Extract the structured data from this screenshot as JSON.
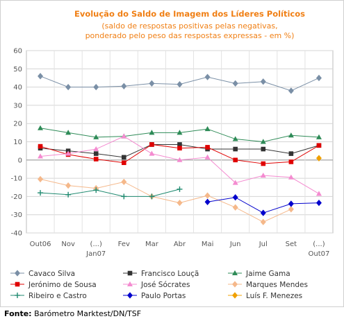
{
  "chart_data": {
    "type": "line",
    "title": "Evolução do Saldo  de Imagem dos Líderes Políticos",
    "subtitle": [
      "(saldo de respostas positivas pelas negativas,",
      "ponderado pelo peso das respostas expressas - em %)"
    ],
    "categories": [
      [
        "Out06"
      ],
      [
        "Nov"
      ],
      [
        "(...)",
        "Jan07"
      ],
      [
        "Fev"
      ],
      [
        "Mar"
      ],
      [
        "Abr"
      ],
      [
        "Mai"
      ],
      [
        "Jun"
      ],
      [
        "Jul"
      ],
      [
        "Set"
      ],
      [
        "(...)",
        "Out07"
      ]
    ],
    "ylim": [
      -40,
      60
    ],
    "yticks": [
      -40,
      -30,
      -20,
      -10,
      0,
      10,
      20,
      30,
      40,
      50,
      60
    ],
    "grid": true,
    "legend_position": "bottom",
    "series": [
      {
        "name": "Cavaco Silva",
        "color": "#7a8fa6",
        "marker": "diamond",
        "values": [
          46,
          40,
          40,
          40.5,
          42,
          41.5,
          45.5,
          42,
          43,
          38,
          45
        ]
      },
      {
        "name": "Francisco Louçã",
        "color": "#333333",
        "marker": "square",
        "values": [
          6.5,
          5,
          3.5,
          1.5,
          8.5,
          8.5,
          6,
          6,
          6,
          3.5,
          8
        ]
      },
      {
        "name": "Jaime Gama",
        "color": "#2e8b57",
        "marker": "triangle",
        "values": [
          17.5,
          15,
          12.5,
          13,
          15,
          15,
          17,
          11.5,
          10,
          13.5,
          12.5
        ]
      },
      {
        "name": "Jerónimo de Sousa",
        "color": "#e00000",
        "marker": "square",
        "values": [
          7.5,
          3,
          0.5,
          -1.5,
          8.5,
          6.5,
          7,
          0,
          -2,
          -1,
          8
        ]
      },
      {
        "name": "José Sócrates",
        "color": "#f48bd0",
        "marker": "triangle",
        "values": [
          2,
          3.5,
          6,
          13,
          3.5,
          0,
          1.5,
          -12.5,
          -8.5,
          -9.5,
          -18.5
        ]
      },
      {
        "name": "Marques Mendes",
        "color": "#f5b88a",
        "marker": "diamond",
        "values": [
          -10.5,
          -14,
          -15.5,
          -12,
          -20,
          -23.5,
          -19.5,
          -26,
          -34,
          -27,
          null
        ]
      },
      {
        "name": "Ribeiro e Castro",
        "color": "#1f8a70",
        "marker": "plus",
        "values": [
          -18,
          -19,
          -16.5,
          -20,
          -20,
          -16,
          null,
          null,
          null,
          null,
          null
        ]
      },
      {
        "name": "Paulo Portas",
        "color": "#0000cc",
        "marker": "diamond",
        "values": [
          null,
          null,
          null,
          null,
          null,
          null,
          -23,
          -20.5,
          -29,
          -24,
          -23.5
        ]
      },
      {
        "name": "Luís F. Menezes",
        "color": "#f0a000",
        "marker": "diamond",
        "values": [
          null,
          null,
          null,
          null,
          null,
          null,
          null,
          null,
          null,
          null,
          1
        ]
      }
    ]
  },
  "source": {
    "label": "Fonte:",
    "text": " Barómetro Marktest/DN/TSF"
  }
}
